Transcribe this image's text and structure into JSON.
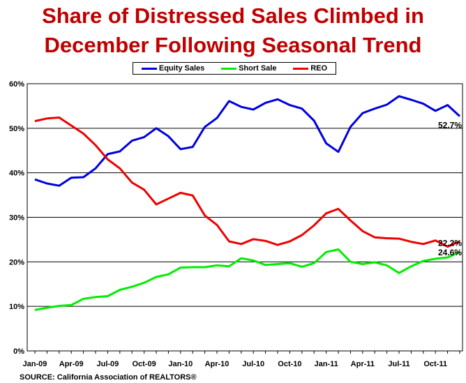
{
  "chart_data": {
    "type": "line",
    "title": "Share of Distressed Sales Climbed in\nDecember Following Seasonal Trend",
    "source": "SOURCE: California Association of REALTORS®",
    "x": [
      "Jan-09",
      "Feb-09",
      "Mar-09",
      "Apr-09",
      "May-09",
      "Jun-09",
      "Jul-09",
      "Aug-09",
      "Sep-09",
      "Oct-09",
      "Nov-09",
      "Dec-09",
      "Jan-10",
      "Feb-10",
      "Mar-10",
      "Apr-10",
      "May-10",
      "Jun-10",
      "Jul-10",
      "Aug-10",
      "Sep-10",
      "Oct-10",
      "Nov-10",
      "Dec-10",
      "Jan-11",
      "Feb-11",
      "Mar-11",
      "Apr-11",
      "May-11",
      "Jun-11",
      "Jul-11",
      "Aug-11",
      "Sep-11",
      "Oct-11",
      "Nov-11",
      "Dec-11"
    ],
    "x_tick_labels": [
      "Jan-09",
      "Apr-09",
      "Jul-09",
      "Oct-09",
      "Jan-10",
      "Apr-10",
      "Jul-10",
      "Oct-10",
      "Jan-11",
      "Apr-11",
      "Jul-11",
      "Oct-11"
    ],
    "ylim": [
      0,
      60
    ],
    "y_tick_labels": [
      "0%",
      "10%",
      "20%",
      "30%",
      "40%",
      "50%",
      "60%"
    ],
    "y_ticks": [
      0,
      10,
      20,
      30,
      40,
      50,
      60
    ],
    "grid": "horizontal",
    "legend_position": "top",
    "series": [
      {
        "name": "Equity Sales",
        "color": "#0000dd",
        "values": [
          38.5,
          37.6,
          37.1,
          38.9,
          39.0,
          41.0,
          44.2,
          44.8,
          47.2,
          48.0,
          50.0,
          48.2,
          45.3,
          45.8,
          50.3,
          52.3,
          56.1,
          54.8,
          54.2,
          55.7,
          56.5,
          55.2,
          54.4,
          51.7,
          46.6,
          44.7,
          50.3,
          53.4,
          54.4,
          55.3,
          57.2,
          56.4,
          55.5,
          53.9,
          55.2,
          52.7
        ],
        "end_label": "52.7%"
      },
      {
        "name": "Short Sale",
        "color": "#00ee00",
        "values": [
          9.2,
          9.7,
          10.1,
          10.3,
          11.7,
          12.1,
          12.3,
          13.7,
          14.4,
          15.3,
          16.6,
          17.2,
          18.7,
          18.8,
          18.8,
          19.2,
          19.0,
          20.8,
          20.3,
          19.3,
          19.5,
          19.7,
          18.9,
          19.7,
          22.2,
          22.8,
          20.0,
          19.5,
          19.9,
          19.2,
          17.5,
          19.0,
          20.2,
          20.7,
          21.0,
          22.2
        ],
        "end_label": "22.2%"
      },
      {
        "name": "REO",
        "color": "#ee0000",
        "values": [
          51.6,
          52.2,
          52.4,
          50.6,
          48.8,
          46.2,
          43.0,
          41.0,
          37.8,
          36.2,
          32.9,
          34.2,
          35.5,
          34.9,
          30.4,
          28.3,
          24.6,
          24.0,
          25.1,
          24.7,
          23.8,
          24.6,
          26.0,
          28.2,
          30.9,
          31.9,
          29.3,
          26.9,
          25.5,
          25.3,
          25.2,
          24.5,
          24.0,
          24.8,
          23.4,
          24.6
        ],
        "end_label": "24.6%"
      }
    ]
  }
}
